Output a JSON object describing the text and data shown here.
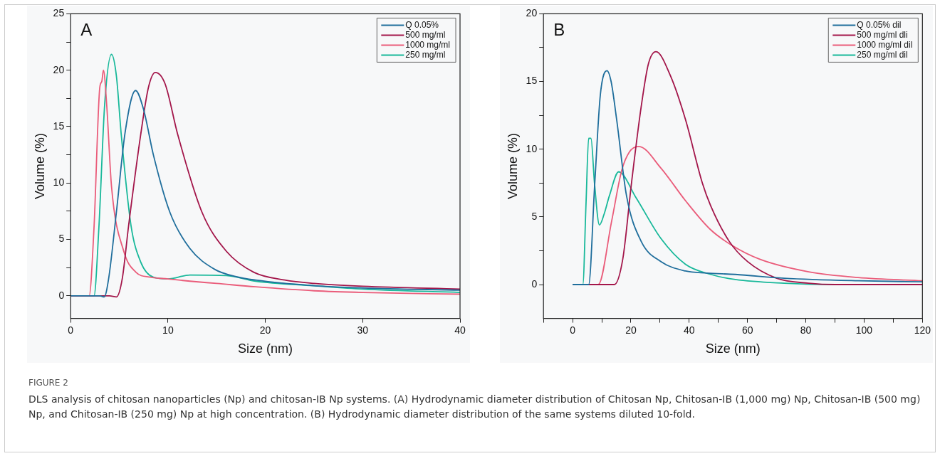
{
  "chart_data": [
    {
      "type": "line",
      "xlabel": "Size (nm)",
      "ylabel": "Volume (%)",
      "legend": "top right",
      "grid": false,
      "marker": "none",
      "line_style": "solid",
      "xlim": [
        0,
        40
      ],
      "ylim": [
        -2,
        25
      ],
      "xticks": [
        0,
        10,
        20,
        30,
        40
      ],
      "yticks": [
        0,
        {
          "value": 2.5,
          "label": null
        },
        5,
        {
          "value": 7.5,
          "label": null
        },
        10,
        {
          "value": 12.5,
          "label": null
        },
        15,
        {
          "value": 17.5,
          "label": null
        },
        20,
        {
          "value": 22.5,
          "label": null
        },
        25
      ],
      "annotations": [
        "A",
        "FIGURE 2",
        "DLS analysis of chitosan nanoparticles (Np) and chitosan-IB Np systems. (A) Hydrodynamic diameter distribution of Chitosan Np, Chitosan-IB (1,000 mg) Np, Chitosan-IB (500 mg) Np, and Chitosan-IB (250 mg) Np at high concentration. (B) Hydrodynamic diameter distribution of the same systems diluted 10-fold."
      ],
      "series": [
        {
          "name": "Q 0.05%",
          "color": "#1f6e9c",
          "x": [
            0,
            3.0,
            3.45,
            3.9,
            4.7,
            5.6,
            6.67,
            7.5,
            8.5,
            10.2,
            12.25,
            14.8,
            17,
            19,
            25,
            30,
            40
          ],
          "values": [
            0,
            0,
            -0.1,
            1.5,
            7.4,
            14.5,
            18.2,
            16.5,
            12.5,
            7.4,
            4.2,
            2.35,
            1.7,
            1.4,
            0.9,
            0.7,
            0.5
          ]
        },
        {
          "name": "500 mg/ml",
          "color": "#a3164a",
          "x": [
            0,
            4.0,
            4.7,
            5.3,
            5.96,
            7.2,
            8.0,
            8.7,
            9.7,
            11,
            13.5,
            16,
            18.8,
            22,
            25,
            30,
            40
          ],
          "values": [
            0,
            0,
            -0.1,
            1.5,
            6.25,
            14.3,
            18.5,
            19.8,
            18.8,
            14.3,
            7.4,
            3.95,
            2.1,
            1.4,
            1.1,
            0.85,
            0.6
          ]
        },
        {
          "name": "1000 mg/ml",
          "color": "#ea5c7a",
          "x": [
            0,
            1.9,
            2.4,
            3.0,
            3.2,
            3.37,
            3.7,
            4.2,
            5.46,
            6.7,
            8.2,
            10,
            12.25,
            15,
            19,
            25,
            30,
            40
          ],
          "values": [
            0,
            0,
            6,
            18.5,
            19,
            20,
            17,
            9.7,
            3.95,
            2.1,
            1.65,
            1.5,
            1.3,
            1.1,
            0.8,
            0.45,
            0.3,
            0.15
          ]
        },
        {
          "name": "250 mg/ml",
          "color": "#18b89a",
          "x": [
            0,
            2.4,
            2.9,
            3.5,
            4.2,
            4.7,
            5.2,
            6.2,
            7.2,
            8.5,
            10,
            12.25,
            16,
            19,
            25,
            30,
            40
          ],
          "values": [
            0,
            0,
            6,
            17,
            21.4,
            19.5,
            14.3,
            6.25,
            3.0,
            1.65,
            1.5,
            1.85,
            1.8,
            1.3,
            0.9,
            0.6,
            0.3
          ]
        }
      ]
    },
    {
      "type": "line",
      "xlabel": "Size (nm)",
      "ylabel": "Volume (%)",
      "legend": "top right",
      "grid": false,
      "marker": "none",
      "line_style": "solid",
      "xlim": [
        -10,
        120
      ],
      "ylim": [
        -2.5,
        20
      ],
      "xticks": [
        {
          "value": -10,
          "label": null
        },
        0,
        {
          "value": 10,
          "label": null
        },
        20,
        {
          "value": 30,
          "label": null
        },
        40,
        {
          "value": 50,
          "label": null
        },
        60,
        {
          "value": 70,
          "label": null
        },
        80,
        {
          "value": 90,
          "label": null
        },
        100,
        {
          "value": 110,
          "label": null
        },
        120
      ],
      "yticks": [
        0,
        {
          "value": 2.5,
          "label": null
        },
        5,
        {
          "value": 7.5,
          "label": null
        },
        10,
        {
          "value": 12.5,
          "label": null
        },
        15,
        {
          "value": 17.5,
          "label": null
        },
        20
      ],
      "annotations": [
        "B"
      ],
      "series": [
        {
          "name": "Q 0.05% dil",
          "color": "#1f6e9c",
          "x": [
            0,
            5.5,
            7.6,
            9.5,
            11.8,
            13.2,
            15.1,
            18.5,
            23.5,
            30.3,
            38.7,
            46,
            55.8,
            72.6,
            97.9,
            120
          ],
          "values": [
            0,
            0,
            7.5,
            14,
            15.8,
            15,
            12.2,
            6.55,
            3.2,
            1.7,
            1.0,
            0.85,
            0.75,
            0.47,
            0.28,
            0.2
          ]
        },
        {
          "name": "500 mg/ml dli",
          "color": "#a3164a",
          "x": [
            0,
            14.3,
            17.2,
            20.2,
            23.5,
            26,
            28.6,
            33.6,
            38.7,
            44.5,
            47.4,
            53.7,
            60,
            70,
            81,
            90,
            120
          ],
          "values": [
            0,
            0,
            1.87,
            7.5,
            13.1,
            16.3,
            17.2,
            15.4,
            12.2,
            7.5,
            5.8,
            3.2,
            1.7,
            0.47,
            0.1,
            0,
            0
          ]
        },
        {
          "name": "1000 mg/ml dil",
          "color": "#ea5c7a",
          "x": [
            0,
            8.8,
            13.4,
            16.8,
            19.5,
            22.7,
            30.3,
            38.7,
            47.1,
            54.6,
            64.2,
            81,
            97.9,
            120
          ],
          "values": [
            0,
            0,
            4.7,
            8.4,
            9.8,
            10.2,
            8.6,
            6.2,
            4.1,
            2.9,
            1.87,
            0.94,
            0.52,
            0.28
          ]
        },
        {
          "name": "250 mg/ml dil",
          "color": "#18b89a",
          "x": [
            0,
            3.5,
            4.6,
            5.5,
            6.3,
            7.5,
            9.2,
            10.8,
            12.6,
            15.8,
            21.8,
            30.3,
            38.7,
            47.4,
            55.8,
            72.6,
            90,
            120
          ],
          "values": [
            0,
            0,
            6,
            10.8,
            10.8,
            7.5,
            4.4,
            5.2,
            6.55,
            8.33,
            6.4,
            3.4,
            1.5,
            0.75,
            0.37,
            0.1,
            0,
            0
          ]
        }
      ]
    }
  ]
}
